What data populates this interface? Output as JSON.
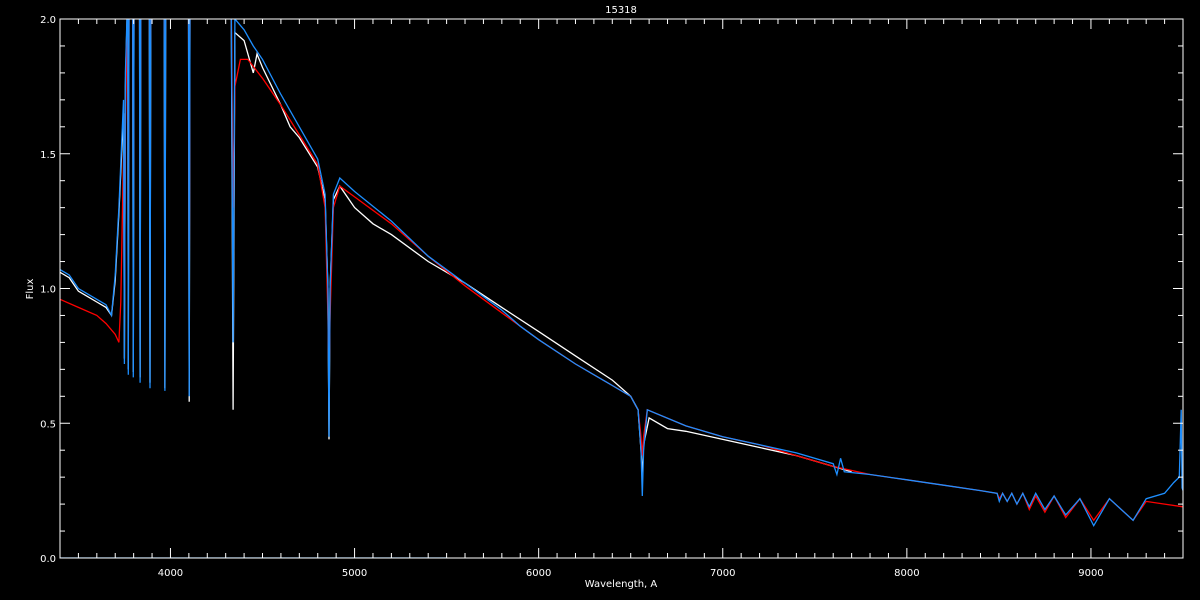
{
  "chart_data": {
    "type": "line",
    "title": "15318",
    "xlabel": "Wavelength, A",
    "ylabel": "Flux",
    "xlim": [
      3400,
      9500
    ],
    "ylim": [
      0.0,
      2.0
    ],
    "x_ticks": [
      4000,
      5000,
      6000,
      7000,
      8000,
      9000
    ],
    "y_ticks": [
      "0.0",
      "0.5",
      "1.0",
      "1.5",
      "2.0"
    ],
    "grid": false,
    "background": "#000000",
    "series": [
      {
        "color": "#ffffff",
        "points": [
          [
            3400,
            1.06
          ],
          [
            3450,
            1.04
          ],
          [
            3500,
            0.99
          ],
          [
            3550,
            0.97
          ],
          [
            3600,
            0.95
          ],
          [
            3650,
            0.93
          ],
          [
            3680,
            0.9
          ],
          [
            3700,
            1.03
          ],
          [
            3720,
            1.28
          ],
          [
            3745,
            1.65
          ],
          [
            3750,
            0.74
          ],
          [
            3755,
            1.75
          ],
          [
            3768,
            2.1
          ],
          [
            3771,
            0.7
          ],
          [
            3775,
            2.1
          ],
          [
            3795,
            2.1
          ],
          [
            3798,
            0.69
          ],
          [
            3802,
            2.1
          ],
          [
            3832,
            2.1
          ],
          [
            3835,
            0.67
          ],
          [
            3839,
            2.1
          ],
          [
            3885,
            2.1
          ],
          [
            3889,
            0.65
          ],
          [
            3893,
            2.1
          ],
          [
            3966,
            2.1
          ],
          [
            3970,
            0.63
          ],
          [
            3974,
            2.1
          ],
          [
            4098,
            2.1
          ],
          [
            4102,
            0.58
          ],
          [
            4106,
            2.1
          ],
          [
            4330,
            2.1
          ],
          [
            4340,
            0.55
          ],
          [
            4350,
            1.95
          ],
          [
            4400,
            1.92
          ],
          [
            4450,
            1.8
          ],
          [
            4470,
            1.87
          ],
          [
            4500,
            1.82
          ],
          [
            4600,
            1.68
          ],
          [
            4650,
            1.6
          ],
          [
            4700,
            1.56
          ],
          [
            4800,
            1.45
          ],
          [
            4840,
            1.33
          ],
          [
            4855,
            1.0
          ],
          [
            4861,
            0.44
          ],
          [
            4867,
            1.0
          ],
          [
            4885,
            1.33
          ],
          [
            4920,
            1.38
          ],
          [
            5000,
            1.3
          ],
          [
            5100,
            1.24
          ],
          [
            5200,
            1.2
          ],
          [
            5400,
            1.1
          ],
          [
            5600,
            1.02
          ],
          [
            5800,
            0.93
          ],
          [
            6000,
            0.84
          ],
          [
            6200,
            0.75
          ],
          [
            6400,
            0.66
          ],
          [
            6500,
            0.6
          ],
          [
            6540,
            0.55
          ],
          [
            6556,
            0.4
          ],
          [
            6563,
            0.3
          ],
          [
            6570,
            0.42
          ],
          [
            6600,
            0.52
          ],
          [
            6700,
            0.48
          ],
          [
            6800,
            0.47
          ],
          [
            7000,
            0.44
          ],
          [
            7200,
            0.41
          ],
          [
            7400,
            0.38
          ],
          [
            7600,
            0.34
          ],
          [
            7700,
            0.32
          ]
        ]
      },
      {
        "color": "#ff0000",
        "points": [
          [
            3400,
            0.96
          ],
          [
            3500,
            0.93
          ],
          [
            3600,
            0.9
          ],
          [
            3650,
            0.87
          ],
          [
            3700,
            0.83
          ],
          [
            3720,
            0.8
          ],
          [
            3730,
            0.95
          ],
          [
            3745,
            1.5
          ],
          [
            3750,
            0.9
          ],
          [
            3755,
            1.6
          ],
          [
            3768,
            2.1
          ],
          [
            3771,
            1.0
          ],
          [
            3775,
            2.1
          ],
          [
            3795,
            2.1
          ],
          [
            3798,
            1.2
          ],
          [
            3802,
            2.1
          ],
          [
            3832,
            2.1
          ],
          [
            3835,
            1.4
          ],
          [
            3839,
            2.1
          ],
          [
            3885,
            2.1
          ],
          [
            3889,
            1.7
          ],
          [
            3893,
            2.1
          ],
          [
            3966,
            2.1
          ],
          [
            3970,
            1.8
          ],
          [
            3974,
            2.1
          ],
          [
            4098,
            2.1
          ],
          [
            4102,
            0.9
          ],
          [
            4106,
            2.1
          ],
          [
            4330,
            2.1
          ],
          [
            4340,
            1.3
          ],
          [
            4350,
            1.75
          ],
          [
            4380,
            1.85
          ],
          [
            4420,
            1.85
          ],
          [
            4500,
            1.78
          ],
          [
            4600,
            1.68
          ],
          [
            4700,
            1.57
          ],
          [
            4800,
            1.46
          ],
          [
            4840,
            1.3
          ],
          [
            4855,
            0.9
          ],
          [
            4861,
            0.65
          ],
          [
            4867,
            0.9
          ],
          [
            4885,
            1.3
          ],
          [
            4920,
            1.38
          ],
          [
            5000,
            1.34
          ],
          [
            5200,
            1.24
          ],
          [
            5400,
            1.12
          ],
          [
            5600,
            1.01
          ],
          [
            5800,
            0.91
          ],
          [
            6000,
            0.81
          ],
          [
            6200,
            0.72
          ],
          [
            6400,
            0.64
          ],
          [
            6500,
            0.6
          ],
          [
            6540,
            0.55
          ],
          [
            6556,
            0.45
          ],
          [
            6563,
            0.38
          ],
          [
            6570,
            0.45
          ],
          [
            6590,
            0.55
          ],
          [
            6800,
            0.49
          ],
          [
            7000,
            0.45
          ],
          [
            7200,
            0.42
          ],
          [
            7400,
            0.38
          ],
          [
            7600,
            0.34
          ],
          [
            7800,
            0.31
          ],
          [
            8000,
            0.29
          ],
          [
            8200,
            0.27
          ],
          [
            8400,
            0.25
          ],
          [
            8490,
            0.24
          ],
          [
            8502,
            0.22
          ],
          [
            8520,
            0.24
          ],
          [
            8545,
            0.21
          ],
          [
            8570,
            0.24
          ],
          [
            8598,
            0.2
          ],
          [
            8630,
            0.24
          ],
          [
            8665,
            0.18
          ],
          [
            8700,
            0.23
          ],
          [
            8750,
            0.17
          ],
          [
            8800,
            0.23
          ],
          [
            8863,
            0.15
          ],
          [
            8940,
            0.22
          ],
          [
            9015,
            0.14
          ],
          [
            9100,
            0.22
          ],
          [
            9229,
            0.14
          ],
          [
            9300,
            0.21
          ],
          [
            9400,
            0.2
          ],
          [
            9500,
            0.19
          ]
        ]
      },
      {
        "color": "#1e8fff",
        "points": [
          [
            3400,
            1.07
          ],
          [
            3450,
            1.05
          ],
          [
            3500,
            1.0
          ],
          [
            3550,
            0.98
          ],
          [
            3600,
            0.96
          ],
          [
            3650,
            0.94
          ],
          [
            3680,
            0.9
          ],
          [
            3700,
            1.05
          ],
          [
            3720,
            1.3
          ],
          [
            3745,
            1.7
          ],
          [
            3750,
            0.72
          ],
          [
            3755,
            1.8
          ],
          [
            3768,
            2.1
          ],
          [
            3771,
            0.68
          ],
          [
            3775,
            2.1
          ],
          [
            3795,
            2.1
          ],
          [
            3798,
            0.67
          ],
          [
            3802,
            2.1
          ],
          [
            3832,
            2.1
          ],
          [
            3835,
            0.65
          ],
          [
            3839,
            2.1
          ],
          [
            3885,
            2.1
          ],
          [
            3889,
            0.63
          ],
          [
            3893,
            2.1
          ],
          [
            3966,
            2.1
          ],
          [
            3970,
            0.62
          ],
          [
            3974,
            2.1
          ],
          [
            4098,
            2.1
          ],
          [
            4102,
            0.6
          ],
          [
            4106,
            2.1
          ],
          [
            4330,
            2.1
          ],
          [
            4340,
            0.8
          ],
          [
            4350,
            2.0
          ],
          [
            4400,
            1.96
          ],
          [
            4450,
            1.9
          ],
          [
            4500,
            1.85
          ],
          [
            4600,
            1.72
          ],
          [
            4700,
            1.6
          ],
          [
            4800,
            1.48
          ],
          [
            4840,
            1.35
          ],
          [
            4855,
            1.0
          ],
          [
            4861,
            0.45
          ],
          [
            4867,
            1.0
          ],
          [
            4885,
            1.35
          ],
          [
            4920,
            1.41
          ],
          [
            5000,
            1.36
          ],
          [
            5200,
            1.25
          ],
          [
            5400,
            1.12
          ],
          [
            5600,
            1.02
          ],
          [
            5800,
            0.92
          ],
          [
            5900,
            0.86
          ],
          [
            6000,
            0.81
          ],
          [
            6200,
            0.72
          ],
          [
            6400,
            0.64
          ],
          [
            6500,
            0.6
          ],
          [
            6540,
            0.55
          ],
          [
            6556,
            0.4
          ],
          [
            6563,
            0.23
          ],
          [
            6570,
            0.4
          ],
          [
            6590,
            0.55
          ],
          [
            6800,
            0.49
          ],
          [
            7000,
            0.45
          ],
          [
            7200,
            0.42
          ],
          [
            7400,
            0.39
          ],
          [
            7600,
            0.35
          ],
          [
            7620,
            0.31
          ],
          [
            7640,
            0.37
          ],
          [
            7660,
            0.32
          ],
          [
            7800,
            0.31
          ],
          [
            8000,
            0.29
          ],
          [
            8200,
            0.27
          ],
          [
            8400,
            0.25
          ],
          [
            8490,
            0.24
          ],
          [
            8502,
            0.21
          ],
          [
            8520,
            0.24
          ],
          [
            8545,
            0.21
          ],
          [
            8570,
            0.24
          ],
          [
            8598,
            0.2
          ],
          [
            8630,
            0.24
          ],
          [
            8665,
            0.19
          ],
          [
            8700,
            0.24
          ],
          [
            8750,
            0.18
          ],
          [
            8800,
            0.23
          ],
          [
            8863,
            0.16
          ],
          [
            8940,
            0.22
          ],
          [
            9015,
            0.12
          ],
          [
            9100,
            0.22
          ],
          [
            9229,
            0.14
          ],
          [
            9300,
            0.22
          ],
          [
            9400,
            0.24
          ],
          [
            9450,
            0.28
          ],
          [
            9480,
            0.3
          ],
          [
            9490,
            0.55
          ],
          [
            9495,
            0.26
          ],
          [
            9500,
            0.25
          ]
        ]
      },
      {
        "color": "#1e8fff",
        "points": [
          [
            3400,
            0.0
          ],
          [
            5500,
            0.0
          ]
        ]
      }
    ]
  }
}
